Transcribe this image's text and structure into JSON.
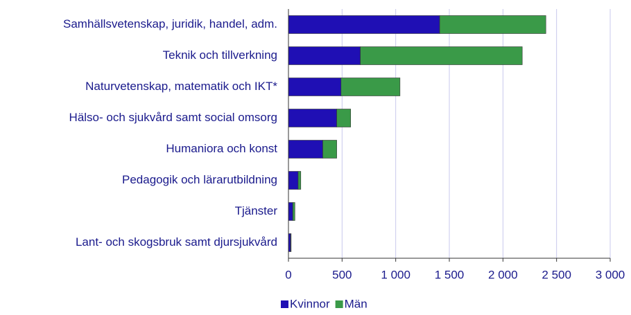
{
  "chart_data": {
    "type": "stacked_barh",
    "categories": [
      "Samhällsvetenskap, juridik, handel, adm.",
      "Teknik och tillverkning",
      "Naturvetenskap, matematik och IKT*",
      "Hälso- och sjukvård samt social omsorg",
      "Humaniora och konst",
      "Pedagogik och lärarutbildning",
      "Tjänster",
      "Lant- och skogsbruk samt djursjukvård"
    ],
    "series": [
      {
        "name": "Kvinnor",
        "color": "#1f0fb4",
        "values": [
          1410,
          670,
          490,
          450,
          320,
          90,
          40,
          20
        ]
      },
      {
        "name": "Män",
        "color": "#3a9a48",
        "values": [
          990,
          1510,
          550,
          130,
          130,
          25,
          20,
          5
        ]
      }
    ],
    "xlim": [
      0,
      3000
    ],
    "xticks": [
      0,
      500,
      {
        "value": 1000,
        "label": "1 000"
      },
      {
        "value": 1500,
        "label": "1 500"
      },
      {
        "value": 2000,
        "label": "2 000"
      },
      {
        "value": 2500,
        "label": "2 500"
      },
      {
        "value": 3000,
        "label": "3 000"
      }
    ],
    "grid": true,
    "legend": "bottom"
  }
}
